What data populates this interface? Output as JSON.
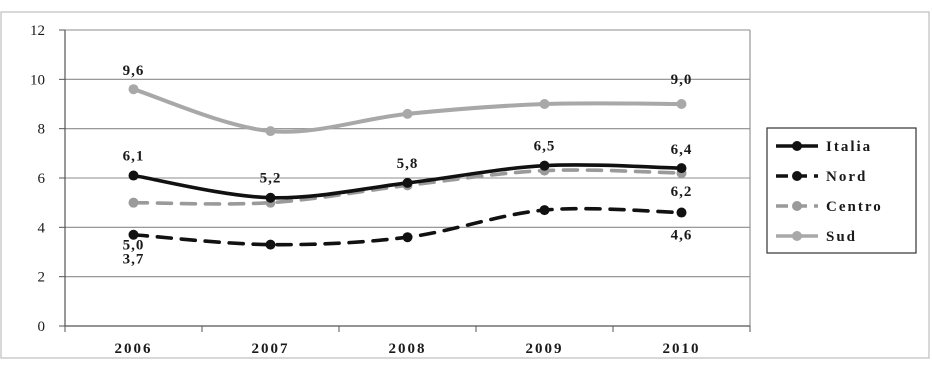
{
  "chart_data": {
    "type": "line",
    "categories": [
      "2006",
      "2007",
      "2008",
      "2009",
      "2010"
    ],
    "ylim": [
      0,
      12
    ],
    "yticks": [
      0,
      2,
      4,
      6,
      8,
      10,
      12
    ],
    "grid": "horizontal",
    "legend_position": "right",
    "series": [
      {
        "name": "Italia",
        "values": [
          6.1,
          5.2,
          5.8,
          6.5,
          6.4
        ],
        "color": "#111111",
        "style": "solid"
      },
      {
        "name": "Nord",
        "values": [
          3.7,
          3.3,
          3.6,
          4.7,
          4.6
        ],
        "color": "#111111",
        "style": "dashed"
      },
      {
        "name": "Centro",
        "values": [
          5.0,
          5.0,
          5.7,
          6.3,
          6.2
        ],
        "color": "#9a9a9a",
        "style": "dashed"
      },
      {
        "name": "Sud",
        "values": [
          9.6,
          7.9,
          8.6,
          9.0,
          9.0
        ],
        "color": "#a8a8a8",
        "style": "solid"
      }
    ],
    "data_labels": [
      {
        "category": "2006",
        "series": "Sud",
        "text": "9,6"
      },
      {
        "category": "2010",
        "series": "Sud",
        "text": "9,0"
      },
      {
        "category": "2006",
        "series": "Italia",
        "text": "6,1"
      },
      {
        "category": "2007",
        "series": "Italia",
        "text": "5,2"
      },
      {
        "category": "2008",
        "series": "Italia",
        "text": "5,8"
      },
      {
        "category": "2009",
        "series": "Italia",
        "text": "6,5"
      },
      {
        "category": "2010",
        "series": "Italia",
        "text": "6,4"
      },
      {
        "category": "2006",
        "series": "Centro",
        "text": "5,0"
      },
      {
        "category": "2010",
        "series": "Centro",
        "text": "6,2"
      },
      {
        "category": "2006",
        "series": "Nord",
        "text": "3,7"
      },
      {
        "category": "2010",
        "series": "Nord",
        "text": "4,6"
      }
    ]
  }
}
